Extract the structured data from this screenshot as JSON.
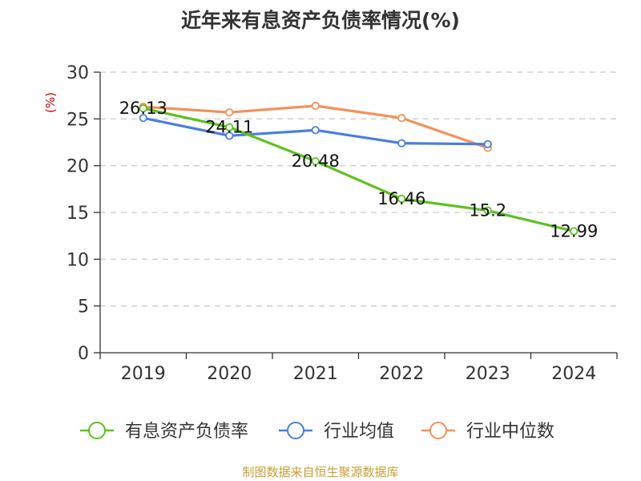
{
  "chart_data": {
    "type": "line",
    "title": "近年来有息资产负债率情况(%)",
    "ylabel": "(%)",
    "xlabel": "",
    "categories": [
      "2019",
      "2020",
      "2021",
      "2022",
      "2023",
      "2024"
    ],
    "ylim": [
      0,
      30
    ],
    "yticks": [
      0,
      5,
      10,
      15,
      20,
      25,
      30
    ],
    "grid": true,
    "legend_position": "bottom",
    "series": [
      {
        "name": "有息资产负债率",
        "color": "#5ec11f",
        "values": [
          26.13,
          24.11,
          20.48,
          16.46,
          15.2,
          12.99
        ],
        "labels": [
          "26.13",
          "24.11",
          "20.48",
          "16.46",
          "15.2",
          "12.99"
        ]
      },
      {
        "name": "行业均值",
        "color": "#4a7fdb",
        "values": [
          25.1,
          23.2,
          23.8,
          22.4,
          22.3,
          null
        ]
      },
      {
        "name": "行业中位数",
        "color": "#f4915a",
        "values": [
          26.3,
          25.7,
          26.4,
          25.1,
          21.9,
          null
        ]
      }
    ]
  },
  "source": "制图数据来自恒生聚源数据库",
  "colors": {
    "axis": "#333333",
    "grid": "#cccccc",
    "ylabel": "#cc0000"
  }
}
